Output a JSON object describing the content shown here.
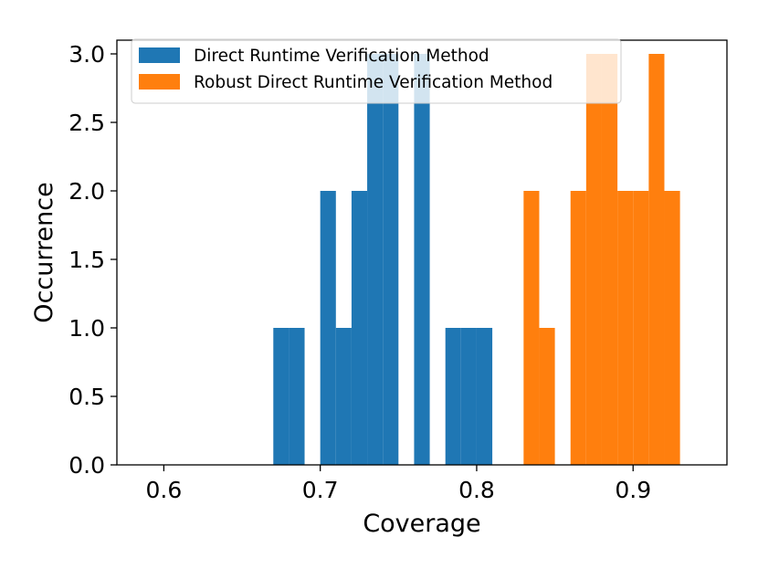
{
  "chart_data": {
    "type": "bar",
    "xlabel": "Coverage",
    "ylabel": "Occurrence",
    "xlim": [
      0.57,
      0.96
    ],
    "ylim": [
      0.0,
      3.1
    ],
    "xticks": [
      "0.6",
      "0.7",
      "0.8",
      "0.9"
    ],
    "xtick_values": [
      0.6,
      0.7,
      0.8,
      0.9
    ],
    "yticks": [
      "0.0",
      "0.5",
      "1.0",
      "1.5",
      "2.0",
      "2.5",
      "3.0"
    ],
    "ytick_values": [
      0.0,
      0.5,
      1.0,
      1.5,
      2.0,
      2.5,
      3.0
    ],
    "grid": false,
    "legend_position": "top-left",
    "bin_width": 0.01,
    "series": [
      {
        "name": "Direct Runtime Verification Method",
        "color": "#1f77b4",
        "bins": [
          {
            "x": 0.67,
            "value": 1
          },
          {
            "x": 0.68,
            "value": 1
          },
          {
            "x": 0.7,
            "value": 2
          },
          {
            "x": 0.71,
            "value": 1
          },
          {
            "x": 0.72,
            "value": 2
          },
          {
            "x": 0.73,
            "value": 3
          },
          {
            "x": 0.74,
            "value": 3
          },
          {
            "x": 0.76,
            "value": 3
          },
          {
            "x": 0.78,
            "value": 1
          },
          {
            "x": 0.79,
            "value": 1
          },
          {
            "x": 0.8,
            "value": 1
          }
        ]
      },
      {
        "name": "Robust Direct Runtime Verification Method",
        "color": "#ff7f0e",
        "bins": [
          {
            "x": 0.83,
            "value": 2
          },
          {
            "x": 0.84,
            "value": 1
          },
          {
            "x": 0.86,
            "value": 2
          },
          {
            "x": 0.87,
            "value": 3
          },
          {
            "x": 0.88,
            "value": 3
          },
          {
            "x": 0.89,
            "value": 2
          },
          {
            "x": 0.9,
            "value": 2
          },
          {
            "x": 0.91,
            "value": 3
          },
          {
            "x": 0.92,
            "value": 2
          }
        ]
      }
    ]
  }
}
